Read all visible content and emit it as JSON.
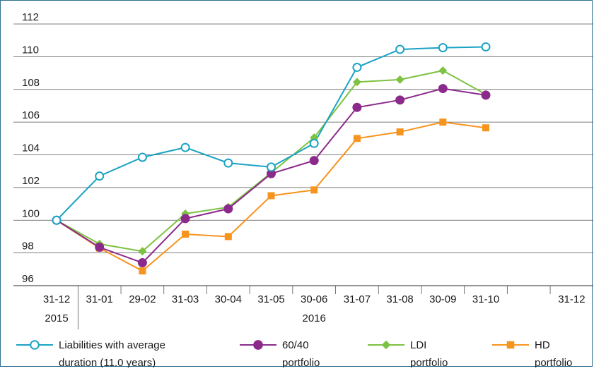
{
  "chart_data": {
    "type": "line",
    "title": "",
    "xlabel": "",
    "ylabel": "",
    "ylim": [
      96,
      112
    ],
    "yticks": [
      96,
      98,
      100,
      102,
      104,
      106,
      108,
      110,
      112
    ],
    "ytick_labels": [
      "96",
      "98",
      "100",
      "102",
      "104",
      "106",
      "108",
      "110",
      "112"
    ],
    "x_labels": [
      "31-12",
      "31-01",
      "29-02",
      "31-03",
      "30-04",
      "31-05",
      "30-06",
      "31-07",
      "31-08",
      "30-09",
      "31-10",
      "",
      "31-12"
    ],
    "year_labels": [
      {
        "label": "2015",
        "index": 0
      },
      {
        "label": "2016",
        "index": 6
      }
    ],
    "grid": "horizontal",
    "legend_position": "bottom",
    "series": [
      {
        "name": "Liabilities with average duration (11.0 years)",
        "legend_lines": [
          "Liabilities with average",
          "duration (11.0 years)"
        ],
        "color": "#1aa3c4",
        "marker": "circle-open",
        "values": [
          100.0,
          102.7,
          103.85,
          104.45,
          103.5,
          103.25,
          104.7,
          109.35,
          110.45,
          110.55,
          110.6
        ]
      },
      {
        "name": "60/40 portfolio",
        "legend_lines": [
          "60/40",
          "portfolio"
        ],
        "color": "#8b2a8b",
        "marker": "circle",
        "values": [
          100.0,
          98.35,
          97.4,
          100.1,
          100.7,
          102.85,
          103.65,
          106.9,
          107.35,
          108.05,
          107.65
        ]
      },
      {
        "name": "LDI portfolio",
        "legend_lines": [
          "LDI",
          "portfolio"
        ],
        "color": "#7dc242",
        "marker": "diamond",
        "values": [
          100.0,
          98.55,
          98.1,
          100.4,
          100.8,
          102.9,
          105.05,
          108.45,
          108.6,
          109.15,
          107.7
        ]
      },
      {
        "name": "HD portfolio",
        "legend_lines": [
          "HD",
          "portfolio"
        ],
        "color": "#f7941d",
        "marker": "square",
        "values": [
          100.0,
          98.3,
          96.9,
          99.15,
          99.0,
          101.5,
          101.85,
          105.0,
          105.4,
          106.0,
          105.65
        ]
      }
    ]
  }
}
